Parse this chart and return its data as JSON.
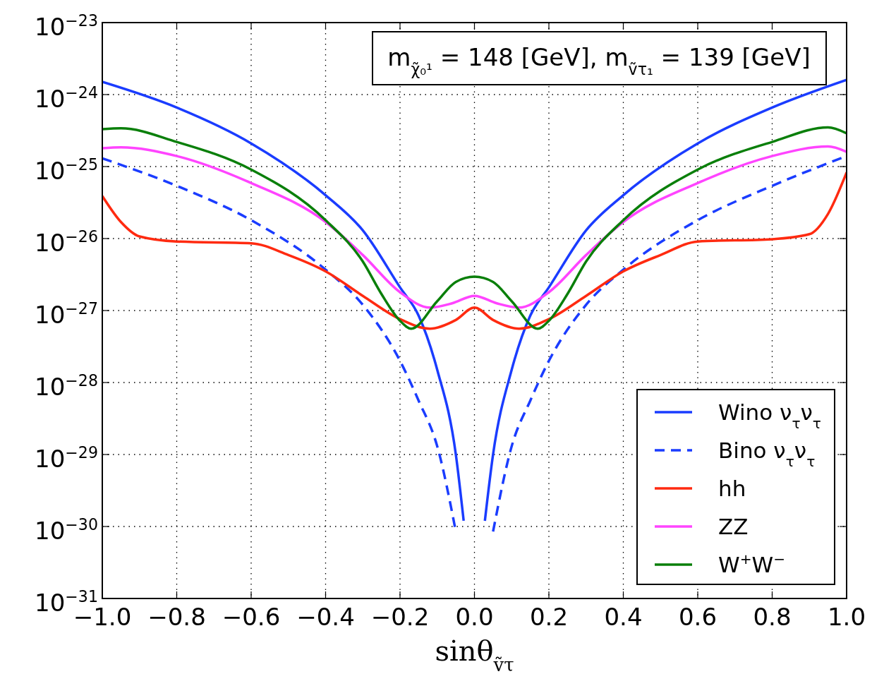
{
  "chart_data": {
    "type": "line",
    "xlabel": "sinθ$_{ṽτ}$",
    "log": "y",
    "grid": true,
    "legend": "bottom right",
    "xlim": [
      -1,
      1
    ],
    "ylim": [
      1e-31,
      1e-23
    ],
    "xticks": [
      {
        "value": -1,
        "label": "−1.0"
      },
      {
        "value": -0.8,
        "label": "−0.8"
      },
      {
        "value": -0.6,
        "label": "−0.6"
      },
      {
        "value": -0.4,
        "label": "−0.4"
      },
      {
        "value": -0.2,
        "label": "−0.2"
      },
      {
        "value": 0,
        "label": "0.0"
      },
      {
        "value": 0.2,
        "label": "0.2"
      },
      {
        "value": 0.4,
        "label": "0.4"
      },
      {
        "value": 0.6,
        "label": "0.6"
      },
      {
        "value": 0.8,
        "label": "0.8"
      },
      {
        "value": 1,
        "label": "1.0"
      }
    ],
    "yticks": [
      {
        "value": 1e-31,
        "label": "10$^{−31}$"
      },
      {
        "value": 1e-30,
        "label": "10$^{−30}$"
      },
      {
        "value": 1e-29,
        "label": "10$^{−29}$"
      },
      {
        "value": 1e-28,
        "label": "10$^{−28}$"
      },
      {
        "value": 1e-27,
        "label": "10$^{−27}$"
      },
      {
        "value": 1e-26,
        "label": "10$^{−26}$"
      },
      {
        "value": 1e-25,
        "label": "10$^{−25}$"
      },
      {
        "value": 1e-24,
        "label": "10$^{−24}$"
      },
      {
        "value": 1e-23,
        "label": "10$^{−23}$"
      }
    ],
    "annotations": [
      "m$_{χ̃₀¹}$ = 148 [GeV], m$_{ṽτ₁}$ = 139 [GeV]"
    ],
    "series": [
      {
        "name": "Wino ν$_{τ}$ν$_{τ}$",
        "color": "#1a3cff",
        "line_style": "solid",
        "x": [
          -1,
          -0.8,
          -0.6,
          -0.4,
          -0.3,
          -0.2,
          -0.15,
          -0.1,
          -0.05,
          -0.029,
          0,
          0.028,
          0.05,
          0.1,
          0.15,
          0.2,
          0.3,
          0.4,
          0.6,
          0.8,
          1
        ],
        "values": [
          1.5e-24,
          6.6e-25,
          2.1e-25,
          4e-26,
          1.3e-26,
          2.1e-27,
          8.5e-28,
          1.5e-28,
          1e-29,
          1.2e-30,
          null,
          1.2e-30,
          1e-29,
          1.5e-28,
          8.5e-28,
          2.1e-27,
          1.3e-26,
          4e-26,
          2.1e-25,
          6.6e-25,
          1.6e-24
        ]
      },
      {
        "name": "Bino ν$_{τ}$ν$_{τ}$",
        "color": "#1a3cff",
        "line_style": "dashed",
        "x": [
          -1,
          -0.8,
          -0.6,
          -0.4,
          -0.3,
          -0.2,
          -0.15,
          -0.1,
          -0.05,
          0,
          0.05,
          0.1,
          0.15,
          0.2,
          0.3,
          0.4,
          0.6,
          0.8,
          1
        ],
        "values": [
          1.3e-25,
          5.4e-26,
          1.8e-26,
          3.7e-27,
          1.2e-27,
          2e-28,
          5.6e-29,
          1.3e-29,
          8.5e-31,
          null,
          8.5e-31,
          1.3e-29,
          5.6e-29,
          2e-28,
          1.2e-27,
          3.7e-27,
          1.8e-26,
          5.4e-26,
          1.4e-25
        ]
      },
      {
        "name": "hh",
        "color": "#ff2a10",
        "line_style": "solid",
        "x": [
          -1,
          -0.95,
          -0.9,
          -0.8,
          -0.6,
          -0.5,
          -0.4,
          -0.3,
          -0.2,
          -0.12,
          -0.05,
          0,
          0.05,
          0.12,
          0.2,
          0.3,
          0.4,
          0.5,
          0.6,
          0.8,
          0.9,
          0.95,
          1
        ],
        "values": [
          3.9e-26,
          1.7e-26,
          1.07e-26,
          9.1e-27,
          8.6e-27,
          5.9e-27,
          3.5e-27,
          1.6e-27,
          7.6e-28,
          5.6e-28,
          7.4e-28,
          1.1e-27,
          7.4e-28,
          5.6e-28,
          7.6e-28,
          1.6e-27,
          3.5e-27,
          5.9e-27,
          9.1e-27,
          9.8e-27,
          1.15e-26,
          2.2e-26,
          8.3e-26
        ]
      },
      {
        "name": "ZZ",
        "color": "#ff44ff",
        "line_style": "solid",
        "x": [
          -1,
          -0.95,
          -0.8,
          -0.6,
          -0.4,
          -0.3,
          -0.2,
          -0.12,
          -0.06,
          0,
          0.06,
          0.12,
          0.2,
          0.3,
          0.4,
          0.6,
          0.8,
          0.95,
          1
        ],
        "values": [
          1.8e-25,
          1.85e-25,
          1.4e-25,
          5.9e-26,
          1.7e-26,
          5.9e-27,
          1.8e-27,
          1.1e-27,
          1.26e-27,
          1.6e-27,
          1.26e-27,
          1.1e-27,
          1.8e-27,
          5.9e-27,
          1.7e-26,
          5.9e-26,
          1.4e-25,
          1.9e-25,
          1.6e-25
        ]
      },
      {
        "name": "W$^{+}$W$^{−}$",
        "color": "#0a7f0a",
        "line_style": "solid",
        "x": [
          -1,
          -0.95,
          -0.8,
          -0.6,
          -0.4,
          -0.3,
          -0.25,
          -0.2,
          -0.17,
          -0.1,
          -0.05,
          0,
          0.05,
          0.1,
          0.17,
          0.2,
          0.25,
          0.3,
          0.4,
          0.6,
          0.8,
          0.95,
          1
        ],
        "values": [
          3.3e-25,
          3.4e-25,
          2.2e-25,
          9.1e-26,
          1.8e-26,
          4.8e-27,
          1.7e-27,
          7.2e-28,
          5.6e-28,
          1.35e-27,
          2.5e-27,
          2.95e-27,
          2.5e-27,
          1.35e-27,
          5.6e-28,
          7.2e-28,
          1.7e-27,
          4.8e-27,
          1.8e-26,
          9.1e-26,
          2.2e-25,
          3.5e-25,
          2.9e-25
        ]
      }
    ]
  }
}
